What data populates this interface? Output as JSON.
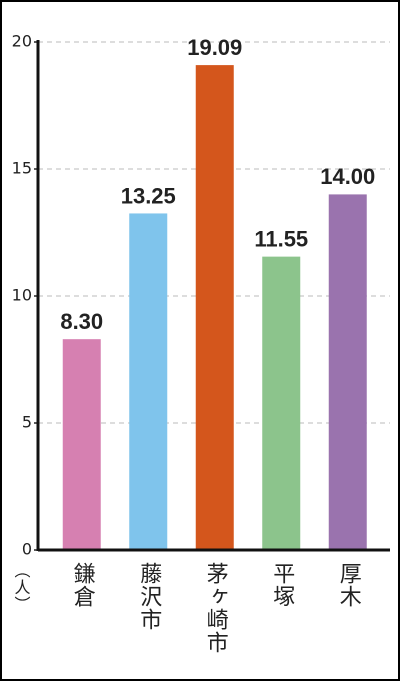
{
  "chart_data": {
    "type": "bar",
    "y_label": "（人）",
    "categories": [
      "鎌倉",
      "藤沢市",
      "茅ヶ崎市",
      "平塚",
      "厚木"
    ],
    "values": [
      8.3,
      13.25,
      19.09,
      11.55,
      14
    ],
    "value_labels": [
      "8.30",
      "13.25",
      "19.09",
      "11.55",
      "14.00"
    ],
    "colors": [
      "#d680b1",
      "#7fc4ec",
      "#d4561c",
      "#8cc48c",
      "#9a73ae"
    ],
    "ylim": [
      0,
      20
    ],
    "yticks": [
      0,
      5,
      10,
      15,
      20
    ],
    "grid": true
  }
}
